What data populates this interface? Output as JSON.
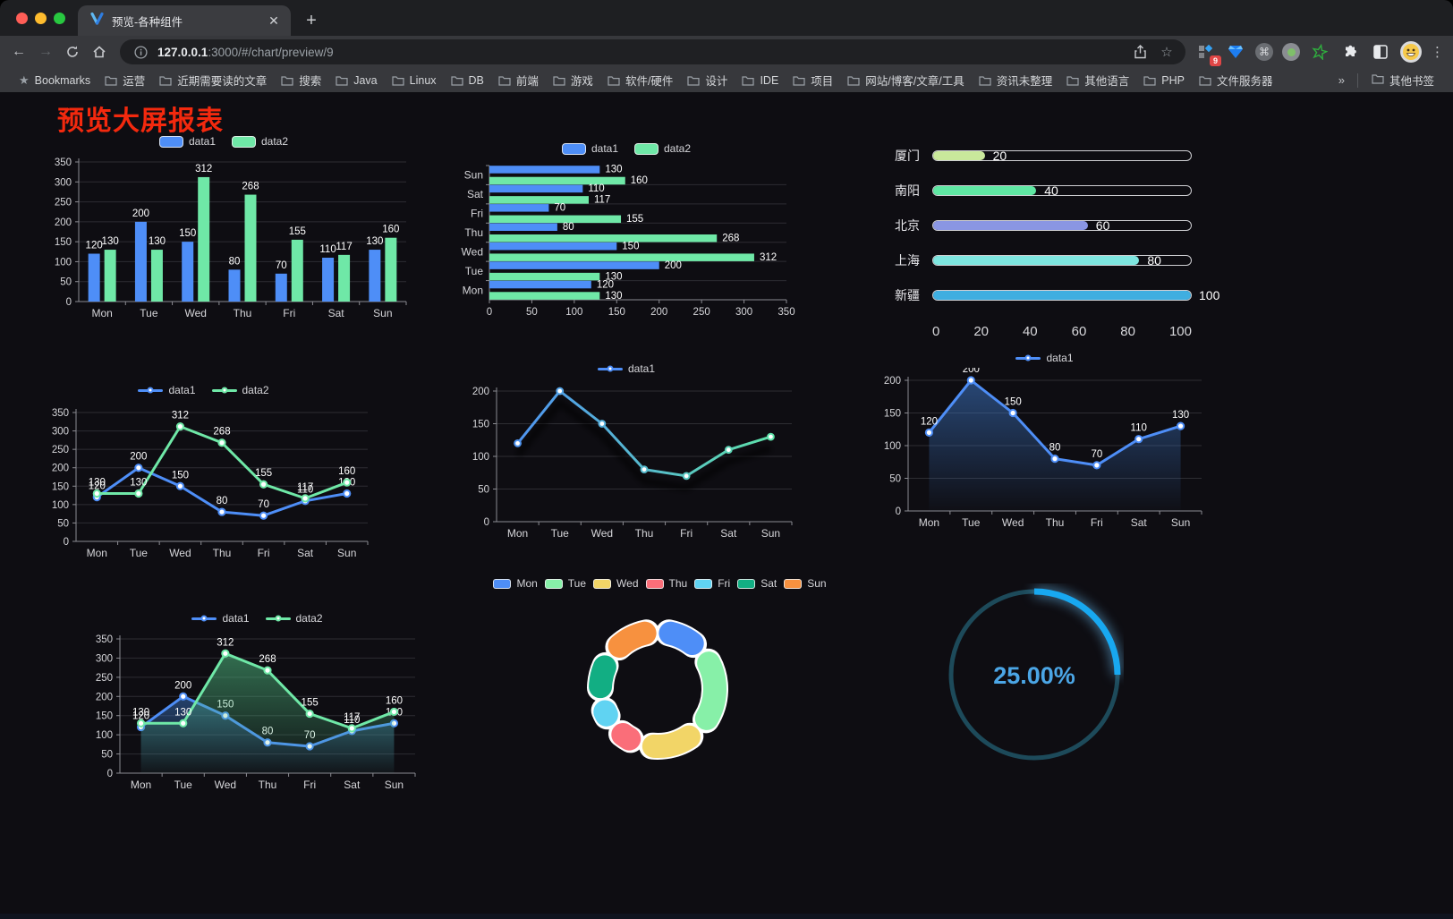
{
  "browser": {
    "tab_title": "预览-各种组件",
    "url": {
      "host": "127.0.0.1",
      "rest": ":3000/#/chart/preview/9"
    },
    "extension_badge": "9",
    "bookmarks_label": "Bookmarks",
    "bookmarks": [
      "运营",
      "近期需要读的文章",
      "搜索",
      "Java",
      "Linux",
      "DB",
      "前端",
      "游戏",
      "软件/硬件",
      "设计",
      "IDE",
      "项目",
      "网站/博客/文章/工具",
      "资讯未整理",
      "其他语言",
      "PHP",
      "文件服务器"
    ],
    "overflow_chevron": "»",
    "other_bookmarks": "其他书签"
  },
  "page": {
    "title": "预览大屏报表"
  },
  "chart_data": [
    {
      "name": "grouped-bar-chart",
      "type": "bar",
      "categories": [
        "Mon",
        "Tue",
        "Wed",
        "Thu",
        "Fri",
        "Sat",
        "Sun"
      ],
      "series": [
        {
          "name": "data1",
          "color": "#4E8EF7",
          "values": [
            120,
            200,
            150,
            80,
            70,
            110,
            130
          ]
        },
        {
          "name": "data2",
          "color": "#6FE8A7",
          "values": [
            130,
            130,
            312,
            268,
            155,
            117,
            160
          ]
        }
      ],
      "ylim": [
        0,
        350
      ],
      "yticks": [
        0,
        50,
        100,
        150,
        200,
        250,
        300,
        350
      ],
      "show_labels": true,
      "legend": "rect",
      "grid": true
    },
    {
      "name": "horizontal-bar-chart",
      "type": "hbar",
      "categories": [
        "Mon",
        "Tue",
        "Wed",
        "Thu",
        "Fri",
        "Sat",
        "Sun"
      ],
      "series": [
        {
          "name": "data1",
          "color": "#4E8EF7",
          "values": [
            120,
            200,
            150,
            80,
            70,
            110,
            130
          ]
        },
        {
          "name": "data2",
          "color": "#6FE8A7",
          "values": [
            130,
            130,
            312,
            268,
            155,
            117,
            160
          ]
        }
      ],
      "xlim": [
        0,
        350
      ],
      "xticks": [
        0,
        50,
        100,
        150,
        200,
        250,
        300,
        350
      ],
      "show_labels": true,
      "legend": "rect",
      "grid": true
    },
    {
      "name": "progress-bars",
      "type": "progress",
      "max": 100,
      "xticks": [
        0,
        20,
        40,
        60,
        80,
        100
      ],
      "items": [
        {
          "label": "厦门",
          "value": 20,
          "color": "#C9E89B"
        },
        {
          "label": "南阳",
          "value": 40,
          "color": "#5FE7A3"
        },
        {
          "label": "北京",
          "value": 60,
          "color": "#8A96E3"
        },
        {
          "label": "上海",
          "value": 80,
          "color": "#7EE6E0"
        },
        {
          "label": "新疆",
          "value": 100,
          "color": "#3FAEE0"
        }
      ]
    },
    {
      "name": "multi-line-chart",
      "type": "line",
      "categories": [
        "Mon",
        "Tue",
        "Wed",
        "Thu",
        "Fri",
        "Sat",
        "Sun"
      ],
      "series": [
        {
          "name": "data1",
          "color": "#4E8EF7",
          "values": [
            120,
            200,
            150,
            80,
            70,
            110,
            130
          ]
        },
        {
          "name": "data2",
          "color": "#6FE8A7",
          "values": [
            130,
            130,
            312,
            268,
            155,
            117,
            160
          ]
        }
      ],
      "ylim": [
        0,
        350
      ],
      "yticks": [
        0,
        50,
        100,
        150,
        200,
        250,
        300,
        350
      ],
      "show_labels": true,
      "legend": "line",
      "grid": true
    },
    {
      "name": "gradient-line-chart",
      "type": "gline",
      "categories": [
        "Mon",
        "Tue",
        "Wed",
        "Thu",
        "Fri",
        "Sat",
        "Sun"
      ],
      "series": [
        {
          "name": "data1",
          "color": "#4E8EF7",
          "values": [
            120,
            200,
            150,
            80,
            70,
            110,
            130
          ]
        }
      ],
      "gradient": [
        "#4E8EF7",
        "#5FE7A3"
      ],
      "ylim": [
        0,
        200
      ],
      "yticks": [
        0,
        50,
        100,
        150,
        200
      ],
      "show_labels": false,
      "legend": "line",
      "grid": true
    },
    {
      "name": "area-chart-single",
      "type": "area",
      "categories": [
        "Mon",
        "Tue",
        "Wed",
        "Thu",
        "Fri",
        "Sat",
        "Sun"
      ],
      "series": [
        {
          "name": "data1",
          "color": "#4E8EF7",
          "fill": [
            "rgba(62,120,200,0.55)",
            "rgba(62,120,200,0.02)"
          ],
          "values": [
            120,
            200,
            150,
            80,
            70,
            110,
            130
          ]
        }
      ],
      "ylim": [
        0,
        200
      ],
      "yticks": [
        0,
        50,
        100,
        150,
        200
      ],
      "show_labels": true,
      "legend": "line",
      "grid": true
    },
    {
      "name": "area-chart-double",
      "type": "area",
      "categories": [
        "Mon",
        "Tue",
        "Wed",
        "Thu",
        "Fri",
        "Sat",
        "Sun"
      ],
      "series": [
        {
          "name": "data1",
          "color": "#4E8EF7",
          "fill": [
            "rgba(60,120,200,0.50)",
            "rgba(60,120,200,0.02)"
          ],
          "values": [
            120,
            200,
            150,
            80,
            70,
            110,
            130
          ]
        },
        {
          "name": "data2",
          "color": "#6FE8A7",
          "fill": [
            "rgba(80,190,130,0.55)",
            "rgba(80,190,130,0.03)"
          ],
          "values": [
            130,
            130,
            312,
            268,
            155,
            117,
            160
          ]
        }
      ],
      "ylim": [
        0,
        350
      ],
      "yticks": [
        0,
        50,
        100,
        150,
        200,
        250,
        300,
        350
      ],
      "show_labels": true,
      "legend": "line",
      "grid": true
    },
    {
      "name": "donut-chart",
      "type": "donut",
      "categories": [
        "Mon",
        "Tue",
        "Wed",
        "Thu",
        "Fri",
        "Sat",
        "Sun"
      ],
      "values": [
        120,
        200,
        150,
        80,
        70,
        110,
        130
      ],
      "colors": [
        "#4E8EF7",
        "#87F0A8",
        "#F2D567",
        "#FA6E79",
        "#60D3F2",
        "#12AE83",
        "#F7913F"
      ],
      "border_color": "#FFFFFF",
      "legend": "rect"
    },
    {
      "name": "gauge-ring",
      "type": "gauge",
      "value_text": "25.00%",
      "percent": 25,
      "arc_color": "#18A8F0",
      "track_color": "#1D4A5A",
      "text_color": "#4BA6E6"
    }
  ]
}
